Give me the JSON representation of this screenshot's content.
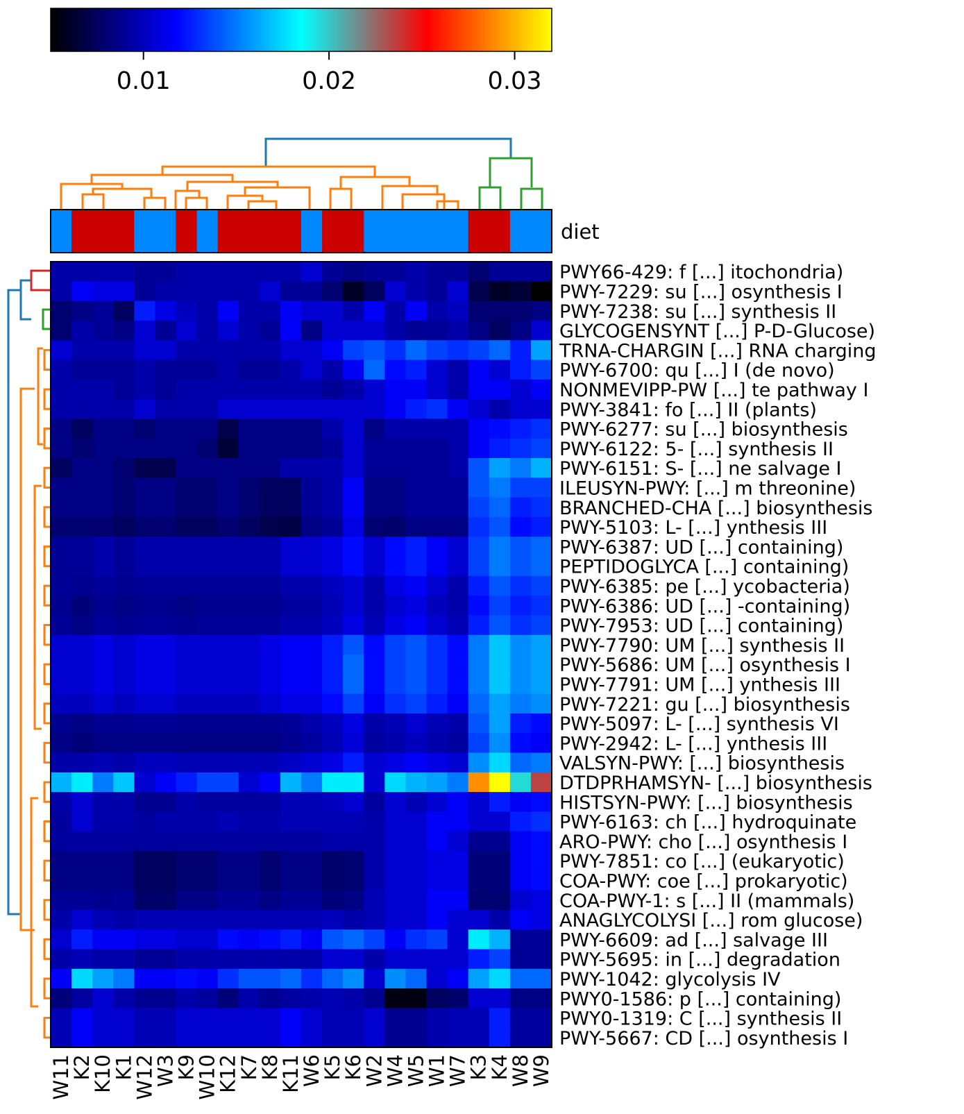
{
  "chart_data": {
    "type": "heatmap",
    "title": "",
    "colorbar": {
      "min": 0.005,
      "max": 0.032,
      "ticks": [
        0.01,
        0.02,
        0.03
      ],
      "tick_labels": [
        "0.01",
        "0.02",
        "0.03"
      ],
      "stops": [
        "#000000",
        "#0000ff",
        "#00ffff",
        "#ff0000",
        "#ffff00"
      ]
    },
    "annotation": {
      "label": "diet",
      "colors": {
        "K": "#cc0000",
        "W": "#0088ff"
      }
    },
    "columns": [
      "W11",
      "K2",
      "K10",
      "K1",
      "W12",
      "W3",
      "K9",
      "W10",
      "K12",
      "K7",
      "K8",
      "K11",
      "W6",
      "K5",
      "K6",
      "W2",
      "W4",
      "W5",
      "W1",
      "W7",
      "K3",
      "K4",
      "W8",
      "W9"
    ],
    "rows": [
      "PWY66-429: f [...] itochondria)",
      "PWY-7229: su [...] osynthesis I",
      "PWY-7238: su [...] synthesis II",
      "GLYCOGENSYNT [...] P-D-Glucose)",
      "TRNA-CHARGIN [...] RNA charging",
      "PWY-6700: qu [...]  I (de novo)",
      "NONMEVIPP-PW [...] te pathway I",
      "PWY-3841: fo [...]  II (plants)",
      "PWY-6277: su [...] biosynthesis",
      "PWY-6122: 5- [...] synthesis II",
      "PWY-6151: S- [...] ne salvage I",
      "ILEUSYN-PWY: [...] m threonine)",
      "BRANCHED-CHA [...] biosynthesis",
      "PWY-5103: L- [...] ynthesis III",
      "PWY-6387: UD [...]  containing)",
      "PEPTIDOGLYCA [...]  containing)",
      "PWY-6385: pe [...] ycobacteria)",
      "PWY-6386: UD [...] -containing)",
      "PWY-7953: UD [...]  containing)",
      "PWY-7790: UM [...] synthesis II",
      "PWY-5686: UM [...] osynthesis I",
      "PWY-7791: UM [...] ynthesis III",
      "PWY-7221: gu [...] biosynthesis",
      "PWY-5097: L- [...] synthesis VI",
      "PWY-2942: L- [...] ynthesis III",
      "VALSYN-PWY:  [...] biosynthesis",
      "DTDPRHAMSYN- [...] biosynthesis",
      "HISTSYN-PWY: [...] biosynthesis",
      "PWY-6163: ch [...] hydroquinate",
      "ARO-PWY: cho [...] osynthesis I",
      "PWY-7851: co [...] (eukaryotic)",
      "COA-PWY: coe [...] prokaryotic)",
      "COA-PWY-1: s [...] II (mammals)",
      "ANAGLYCOLYSI [...] rom glucose)",
      "PWY-6609: ad [...]  salvage III",
      "PWY-5695: in [...]  degradation",
      "PWY-1042: glycolysis IV",
      "PWY0-1586: p [...]  containing)",
      "PWY0-1319: C [...] synthesis II",
      "PWY-5667: CD [...] osynthesis I"
    ],
    "values": [
      [
        0.0095,
        0.0095,
        0.0095,
        0.0095,
        0.009,
        0.009,
        0.0095,
        0.0095,
        0.0095,
        0.0095,
        0.0095,
        0.0095,
        0.0105,
        0.009,
        0.0085,
        0.009,
        0.009,
        0.0095,
        0.009,
        0.009,
        0.008,
        0.009,
        0.009,
        0.009
      ],
      [
        0.0095,
        0.0115,
        0.011,
        0.011,
        0.009,
        0.0095,
        0.0095,
        0.0095,
        0.0095,
        0.0095,
        0.0105,
        0.009,
        0.009,
        0.008,
        0.006,
        0.0075,
        0.0105,
        0.0095,
        0.009,
        0.0105,
        0.007,
        0.006,
        0.0065,
        0.005
      ],
      [
        0.008,
        0.0085,
        0.009,
        0.0075,
        0.0125,
        0.011,
        0.01,
        0.0095,
        0.0115,
        0.0095,
        0.0095,
        0.0115,
        0.0105,
        0.0105,
        0.0095,
        0.0115,
        0.0095,
        0.0115,
        0.0095,
        0.01,
        0.008,
        0.008,
        0.008,
        0.0085
      ],
      [
        0.008,
        0.0095,
        0.009,
        0.0085,
        0.0105,
        0.009,
        0.0105,
        0.0095,
        0.0105,
        0.0095,
        0.009,
        0.0115,
        0.0085,
        0.0105,
        0.0105,
        0.0105,
        0.0095,
        0.009,
        0.009,
        0.0095,
        0.0085,
        0.0075,
        0.0085,
        0.0105
      ],
      [
        0.0105,
        0.0095,
        0.0095,
        0.0095,
        0.0105,
        0.0105,
        0.0095,
        0.0095,
        0.0095,
        0.0095,
        0.0095,
        0.0105,
        0.0105,
        0.0115,
        0.0135,
        0.014,
        0.013,
        0.0145,
        0.0135,
        0.013,
        0.0135,
        0.0145,
        0.0125,
        0.016
      ],
      [
        0.0095,
        0.009,
        0.009,
        0.009,
        0.0095,
        0.009,
        0.009,
        0.009,
        0.0095,
        0.009,
        0.009,
        0.0095,
        0.0105,
        0.0095,
        0.0115,
        0.0145,
        0.012,
        0.0125,
        0.0105,
        0.0095,
        0.0115,
        0.0105,
        0.0125,
        0.0135
      ],
      [
        0.0095,
        0.0095,
        0.0095,
        0.009,
        0.0095,
        0.009,
        0.0095,
        0.0095,
        0.0095,
        0.0095,
        0.0095,
        0.0095,
        0.0095,
        0.009,
        0.0095,
        0.0105,
        0.0115,
        0.0115,
        0.0105,
        0.0095,
        0.0115,
        0.0115,
        0.0105,
        0.0115
      ],
      [
        0.0095,
        0.0095,
        0.0095,
        0.0095,
        0.0105,
        0.0095,
        0.0095,
        0.0095,
        0.0105,
        0.0105,
        0.0105,
        0.0105,
        0.0105,
        0.0105,
        0.0105,
        0.0105,
        0.0115,
        0.0125,
        0.013,
        0.0115,
        0.0105,
        0.0095,
        0.0105,
        0.0105
      ],
      [
        0.0085,
        0.0075,
        0.0085,
        0.0085,
        0.008,
        0.0085,
        0.0085,
        0.0085,
        0.007,
        0.0085,
        0.0085,
        0.0085,
        0.0085,
        0.0095,
        0.0105,
        0.0085,
        0.0095,
        0.0095,
        0.0095,
        0.0095,
        0.0115,
        0.012,
        0.0125,
        0.013
      ],
      [
        0.0085,
        0.008,
        0.0085,
        0.0085,
        0.0085,
        0.0085,
        0.0085,
        0.008,
        0.0065,
        0.0085,
        0.0085,
        0.0085,
        0.0085,
        0.009,
        0.0105,
        0.009,
        0.009,
        0.009,
        0.009,
        0.0095,
        0.0115,
        0.0125,
        0.013,
        0.0135
      ],
      [
        0.0075,
        0.0085,
        0.0085,
        0.008,
        0.007,
        0.007,
        0.0085,
        0.0085,
        0.0085,
        0.0085,
        0.0085,
        0.0095,
        0.0095,
        0.0095,
        0.0105,
        0.009,
        0.009,
        0.009,
        0.009,
        0.0095,
        0.014,
        0.016,
        0.015,
        0.0165
      ],
      [
        0.0085,
        0.0085,
        0.0085,
        0.008,
        0.0085,
        0.0085,
        0.008,
        0.008,
        0.0085,
        0.008,
        0.0075,
        0.0075,
        0.009,
        0.0095,
        0.0115,
        0.0085,
        0.0085,
        0.009,
        0.009,
        0.009,
        0.014,
        0.015,
        0.0135,
        0.0135
      ],
      [
        0.0085,
        0.0085,
        0.0085,
        0.008,
        0.0085,
        0.0085,
        0.008,
        0.008,
        0.0085,
        0.008,
        0.0075,
        0.0075,
        0.009,
        0.0095,
        0.0115,
        0.0085,
        0.0085,
        0.009,
        0.009,
        0.009,
        0.0135,
        0.0145,
        0.0125,
        0.013
      ],
      [
        0.008,
        0.008,
        0.008,
        0.0075,
        0.008,
        0.008,
        0.0075,
        0.0075,
        0.008,
        0.0075,
        0.007,
        0.0068,
        0.0085,
        0.009,
        0.011,
        0.008,
        0.0078,
        0.0085,
        0.0085,
        0.0085,
        0.013,
        0.014,
        0.012,
        0.0125
      ],
      [
        0.009,
        0.009,
        0.0095,
        0.009,
        0.0095,
        0.0095,
        0.0095,
        0.0095,
        0.0095,
        0.0095,
        0.0095,
        0.0105,
        0.0105,
        0.011,
        0.012,
        0.0105,
        0.012,
        0.0125,
        0.0115,
        0.0105,
        0.0135,
        0.015,
        0.014,
        0.0145
      ],
      [
        0.009,
        0.009,
        0.0095,
        0.009,
        0.0095,
        0.0095,
        0.0095,
        0.0095,
        0.0095,
        0.0095,
        0.0095,
        0.0105,
        0.0105,
        0.011,
        0.012,
        0.0105,
        0.012,
        0.0125,
        0.0115,
        0.0105,
        0.0135,
        0.015,
        0.014,
        0.0145
      ],
      [
        0.009,
        0.0088,
        0.009,
        0.0088,
        0.009,
        0.009,
        0.009,
        0.009,
        0.009,
        0.009,
        0.009,
        0.0095,
        0.0095,
        0.01,
        0.0105,
        0.0095,
        0.011,
        0.0115,
        0.0105,
        0.0095,
        0.0125,
        0.014,
        0.013,
        0.0135
      ],
      [
        0.0088,
        0.0082,
        0.0088,
        0.0085,
        0.0088,
        0.0088,
        0.0085,
        0.0088,
        0.0088,
        0.0088,
        0.0088,
        0.0092,
        0.0092,
        0.0098,
        0.0105,
        0.0095,
        0.0105,
        0.011,
        0.01,
        0.0095,
        0.012,
        0.0135,
        0.0125,
        0.013
      ],
      [
        0.009,
        0.0085,
        0.009,
        0.0088,
        0.009,
        0.009,
        0.0088,
        0.009,
        0.009,
        0.009,
        0.009,
        0.0095,
        0.0095,
        0.01,
        0.011,
        0.0098,
        0.011,
        0.0115,
        0.0105,
        0.0098,
        0.0125,
        0.014,
        0.013,
        0.0135
      ],
      [
        0.0105,
        0.0105,
        0.011,
        0.0105,
        0.011,
        0.011,
        0.0105,
        0.0105,
        0.0105,
        0.0105,
        0.011,
        0.0115,
        0.0115,
        0.0125,
        0.014,
        0.012,
        0.0135,
        0.014,
        0.013,
        0.012,
        0.015,
        0.017,
        0.0155,
        0.016
      ],
      [
        0.0105,
        0.0105,
        0.011,
        0.0105,
        0.011,
        0.011,
        0.0105,
        0.0105,
        0.0105,
        0.0105,
        0.011,
        0.0115,
        0.0115,
        0.0125,
        0.0145,
        0.012,
        0.0135,
        0.014,
        0.013,
        0.012,
        0.015,
        0.017,
        0.0155,
        0.016
      ],
      [
        0.0105,
        0.0105,
        0.011,
        0.0105,
        0.011,
        0.011,
        0.0105,
        0.0105,
        0.0105,
        0.0105,
        0.011,
        0.0115,
        0.0115,
        0.0125,
        0.0145,
        0.012,
        0.0135,
        0.014,
        0.013,
        0.012,
        0.015,
        0.017,
        0.0155,
        0.016
      ],
      [
        0.01,
        0.01,
        0.0105,
        0.01,
        0.0105,
        0.0105,
        0.01,
        0.01,
        0.01,
        0.01,
        0.0105,
        0.011,
        0.011,
        0.012,
        0.0135,
        0.0115,
        0.013,
        0.0135,
        0.0125,
        0.0115,
        0.0145,
        0.016,
        0.015,
        0.0155
      ],
      [
        0.0088,
        0.0085,
        0.0088,
        0.0088,
        0.009,
        0.009,
        0.0088,
        0.0088,
        0.0088,
        0.0088,
        0.0088,
        0.009,
        0.0095,
        0.01,
        0.011,
        0.0095,
        0.0098,
        0.0105,
        0.0098,
        0.0095,
        0.014,
        0.016,
        0.0125,
        0.012
      ],
      [
        0.0085,
        0.0082,
        0.0085,
        0.0085,
        0.0085,
        0.0085,
        0.0085,
        0.0085,
        0.0085,
        0.0085,
        0.0085,
        0.0088,
        0.0092,
        0.0098,
        0.0108,
        0.0092,
        0.0095,
        0.01,
        0.0095,
        0.0092,
        0.0135,
        0.0155,
        0.012,
        0.0115
      ],
      [
        0.0095,
        0.0095,
        0.0098,
        0.0095,
        0.01,
        0.01,
        0.0098,
        0.0098,
        0.0098,
        0.0098,
        0.0098,
        0.0102,
        0.0105,
        0.011,
        0.0125,
        0.0105,
        0.011,
        0.0115,
        0.011,
        0.0105,
        0.0155,
        0.0175,
        0.0145,
        0.015
      ],
      [
        0.0165,
        0.018,
        0.015,
        0.017,
        0.0105,
        0.0115,
        0.0125,
        0.0135,
        0.0135,
        0.0105,
        0.0115,
        0.0165,
        0.015,
        0.018,
        0.018,
        0.0105,
        0.0175,
        0.0165,
        0.016,
        0.015,
        0.029,
        0.032,
        0.0195,
        0.0235
      ],
      [
        0.0095,
        0.0105,
        0.0095,
        0.0095,
        0.0088,
        0.0088,
        0.0095,
        0.0092,
        0.0092,
        0.0092,
        0.0092,
        0.0098,
        0.0098,
        0.01,
        0.0105,
        0.0092,
        0.0105,
        0.0098,
        0.0105,
        0.0115,
        0.0105,
        0.0125,
        0.0115,
        0.012
      ],
      [
        0.0092,
        0.0105,
        0.0095,
        0.0095,
        0.0092,
        0.0095,
        0.0095,
        0.0095,
        0.0098,
        0.0095,
        0.0095,
        0.0098,
        0.0098,
        0.0098,
        0.0098,
        0.0095,
        0.0105,
        0.0105,
        0.0115,
        0.0115,
        0.0105,
        0.0105,
        0.0125,
        0.013
      ],
      [
        0.0092,
        0.0092,
        0.0092,
        0.0092,
        0.0092,
        0.0092,
        0.0092,
        0.0092,
        0.0092,
        0.0092,
        0.0092,
        0.0092,
        0.0092,
        0.0095,
        0.0095,
        0.0095,
        0.0105,
        0.0105,
        0.0115,
        0.0105,
        0.0088,
        0.0088,
        0.0115,
        0.012
      ],
      [
        0.0085,
        0.0085,
        0.0085,
        0.0085,
        0.0075,
        0.0075,
        0.008,
        0.008,
        0.0085,
        0.0085,
        0.008,
        0.0085,
        0.0085,
        0.0078,
        0.008,
        0.0095,
        0.0105,
        0.0105,
        0.011,
        0.011,
        0.0082,
        0.0082,
        0.0115,
        0.012
      ],
      [
        0.0085,
        0.0085,
        0.0085,
        0.0085,
        0.0075,
        0.0075,
        0.008,
        0.008,
        0.0085,
        0.0085,
        0.008,
        0.0085,
        0.0085,
        0.0078,
        0.008,
        0.0095,
        0.0105,
        0.0105,
        0.011,
        0.011,
        0.0082,
        0.0082,
        0.0115,
        0.012
      ],
      [
        0.009,
        0.009,
        0.0088,
        0.009,
        0.0078,
        0.0078,
        0.0085,
        0.0085,
        0.009,
        0.009,
        0.0085,
        0.009,
        0.009,
        0.0082,
        0.0085,
        0.0098,
        0.0105,
        0.0105,
        0.0115,
        0.0115,
        0.008,
        0.008,
        0.0105,
        0.011
      ],
      [
        0.0095,
        0.0105,
        0.0098,
        0.0095,
        0.0098,
        0.0098,
        0.0098,
        0.0098,
        0.0098,
        0.0098,
        0.0098,
        0.0098,
        0.0098,
        0.01,
        0.0095,
        0.0098,
        0.0105,
        0.0105,
        0.0115,
        0.0105,
        0.0105,
        0.0095,
        0.0115,
        0.011
      ],
      [
        0.0105,
        0.0125,
        0.0115,
        0.0115,
        0.011,
        0.011,
        0.0105,
        0.0105,
        0.012,
        0.0115,
        0.012,
        0.0125,
        0.0115,
        0.014,
        0.0145,
        0.0135,
        0.0115,
        0.013,
        0.0135,
        0.0105,
        0.018,
        0.0165,
        0.009,
        0.009
      ],
      [
        0.0095,
        0.0098,
        0.0095,
        0.0095,
        0.009,
        0.009,
        0.0095,
        0.0095,
        0.0095,
        0.0095,
        0.0095,
        0.0095,
        0.0095,
        0.0105,
        0.0105,
        0.0095,
        0.0105,
        0.0105,
        0.0105,
        0.0105,
        0.0125,
        0.0135,
        0.009,
        0.009
      ],
      [
        0.0115,
        0.0175,
        0.016,
        0.015,
        0.0115,
        0.0115,
        0.012,
        0.0115,
        0.013,
        0.014,
        0.014,
        0.0145,
        0.013,
        0.0145,
        0.0155,
        0.0105,
        0.0155,
        0.0145,
        0.0105,
        0.0115,
        0.016,
        0.0175,
        0.0145,
        0.0145
      ],
      [
        0.0082,
        0.0092,
        0.0105,
        0.0095,
        0.0088,
        0.0088,
        0.0095,
        0.0092,
        0.0082,
        0.0095,
        0.0088,
        0.0092,
        0.0095,
        0.0098,
        0.0095,
        0.0088,
        0.0055,
        0.0055,
        0.0075,
        0.0078,
        0.0105,
        0.0105,
        0.0085,
        0.0085
      ],
      [
        0.0098,
        0.0115,
        0.0105,
        0.0105,
        0.0098,
        0.0098,
        0.0105,
        0.0105,
        0.0105,
        0.0105,
        0.0105,
        0.0115,
        0.0105,
        0.0098,
        0.0098,
        0.0105,
        0.0088,
        0.0088,
        0.0095,
        0.0098,
        0.0098,
        0.0125,
        0.0092,
        0.0092
      ],
      [
        0.0098,
        0.0115,
        0.0105,
        0.0105,
        0.0098,
        0.0098,
        0.0105,
        0.0105,
        0.0105,
        0.0105,
        0.0105,
        0.0115,
        0.0105,
        0.0098,
        0.0098,
        0.0105,
        0.0088,
        0.0088,
        0.0095,
        0.0098,
        0.0098,
        0.0125,
        0.0092,
        0.0092
      ]
    ]
  }
}
